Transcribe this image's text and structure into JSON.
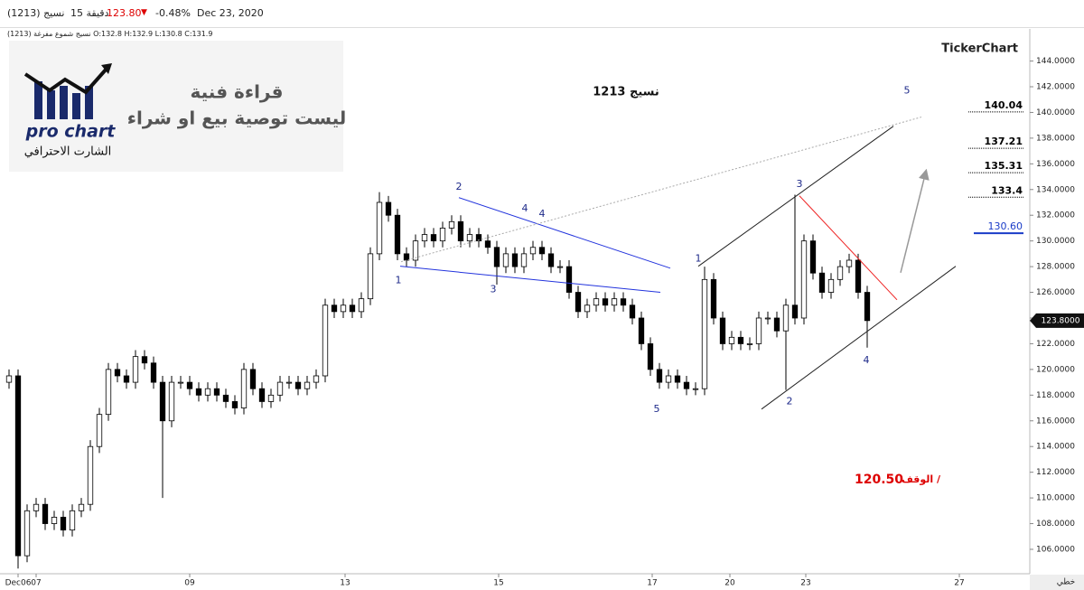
{
  "header": {
    "symbol": "نسيج (1213)",
    "interval": "15 دقيقة",
    "price": "123.80",
    "change": "-0.48%",
    "date": "Dec 23, 2020",
    "ohlc": "نسيج شموع مفرغة (1213) O:132.8 H:132.9 L:130.8 C:131.9"
  },
  "logo": {
    "brand": "pro chart",
    "tagline": "الشارت الاحترافي"
  },
  "notice": {
    "line1": "قراءة فنية",
    "line2": "ليست توصية بيع او شراء"
  },
  "watermark": "TickerChart",
  "footer": {
    "mode": "خطي"
  },
  "chart_data": {
    "type": "candlestick",
    "title": "نسيج 1213",
    "xlim": [
      0,
      114
    ],
    "ylim": [
      104.1,
      146.5
    ],
    "xticks": [
      {
        "value": 2,
        "label": "Dec06"
      },
      {
        "value": 4,
        "label": "07"
      },
      {
        "value": 21,
        "label": "09"
      },
      {
        "value": 38.2,
        "label": "13"
      },
      {
        "value": 55.2,
        "label": "15"
      },
      {
        "value": 72.2,
        "label": "17"
      },
      {
        "value": 80.8,
        "label": "20"
      },
      {
        "value": 89.2,
        "label": "23"
      },
      {
        "value": 106.2,
        "label": "27"
      }
    ],
    "yticks": [
      {
        "value": 106,
        "label": "106.0000"
      },
      {
        "value": 108,
        "label": "108.0000"
      },
      {
        "value": 110,
        "label": "110.0000"
      },
      {
        "value": 112,
        "label": "112.0000"
      },
      {
        "value": 114,
        "label": "114.0000"
      },
      {
        "value": 116,
        "label": "116.0000"
      },
      {
        "value": 118,
        "label": "118.0000"
      },
      {
        "value": 120,
        "label": "120.0000"
      },
      {
        "value": 122,
        "label": "122.0000"
      },
      {
        "value": 124,
        "label": "124.0000"
      },
      {
        "value": 126,
        "label": "126.0000"
      },
      {
        "value": 128,
        "label": "128.0000"
      },
      {
        "value": 130,
        "label": "130.0000"
      },
      {
        "value": 132,
        "label": "132.0000"
      },
      {
        "value": 134,
        "label": "134.0000"
      },
      {
        "value": 136,
        "label": "136.0000"
      },
      {
        "value": 138,
        "label": "138.0000"
      },
      {
        "value": 140,
        "label": "140.0000"
      },
      {
        "value": 142,
        "label": "142.0000"
      },
      {
        "value": 144,
        "label": "144.0000"
      }
    ],
    "up_color": "#ffffff",
    "down_color": "#000000",
    "edge_color": "#000000",
    "x": [
      1,
      2,
      3,
      4,
      5,
      6,
      7,
      8,
      9,
      10,
      11,
      12,
      13,
      14,
      15,
      16,
      17,
      18,
      19,
      20,
      21,
      22,
      23,
      24,
      25,
      26,
      27,
      28,
      29,
      30,
      31,
      32,
      33,
      34,
      35,
      36,
      37,
      38,
      39,
      40,
      41,
      42,
      43,
      44,
      45,
      46,
      47,
      48,
      49,
      50,
      51,
      52,
      53,
      54,
      55,
      56,
      57,
      58,
      59,
      60,
      61,
      62,
      63,
      64,
      65,
      66,
      67,
      68,
      69,
      70,
      71,
      72,
      73,
      74,
      75,
      76,
      77,
      78,
      79,
      80,
      81,
      82,
      83,
      84,
      85,
      86,
      87,
      88,
      89,
      90,
      91,
      92,
      93,
      94,
      95,
      96
    ],
    "open": [
      119,
      119.5,
      105.5,
      109,
      109.5,
      108,
      108.5,
      107.5,
      109,
      109.5,
      114,
      116.5,
      120,
      119.5,
      119,
      121,
      120.5,
      119,
      116,
      119,
      119,
      118.5,
      118,
      118.5,
      118,
      117.5,
      117,
      120,
      118.5,
      117.5,
      118,
      119,
      119,
      118.5,
      119,
      119.5,
      125,
      124.5,
      125,
      124.5,
      125.5,
      129,
      133,
      132,
      129,
      128.5,
      130,
      130.5,
      130,
      131,
      131.5,
      130,
      130.5,
      130,
      129.5,
      128,
      129,
      128,
      129,
      129.5,
      129,
      128,
      128,
      126,
      124.5,
      125,
      125.5,
      125,
      125.5,
      125,
      124,
      122,
      120,
      119,
      119.5,
      119,
      118.5,
      118.5,
      127,
      124,
      122,
      122.5,
      122,
      122,
      124,
      124,
      123,
      125,
      124,
      130,
      127.5,
      126,
      127,
      128,
      128.5,
      126
    ],
    "high": [
      120,
      120,
      109.5,
      110,
      110,
      109,
      109,
      109.5,
      110,
      114.5,
      117,
      120.5,
      120.5,
      120,
      121.5,
      121.5,
      121,
      119.5,
      119.5,
      119.5,
      119.5,
      119,
      119,
      119,
      118.5,
      118,
      120.5,
      120.5,
      119,
      118.5,
      119.5,
      119.5,
      119.5,
      119.5,
      120,
      125.5,
      125.5,
      125.5,
      125.5,
      126,
      129.5,
      133.8,
      133.5,
      132.5,
      129.5,
      130.5,
      131,
      131,
      131.5,
      132,
      132,
      131,
      131,
      130.5,
      130,
      129.5,
      129.5,
      129.5,
      130,
      130,
      129.5,
      128.5,
      128.5,
      126.5,
      125.5,
      126,
      126,
      126,
      126,
      125.5,
      124.5,
      122.5,
      120.5,
      120,
      120,
      119.5,
      119,
      128,
      127.5,
      124.5,
      123,
      123,
      122.5,
      124.5,
      124.5,
      124.5,
      125.5,
      133.6,
      130.5,
      130.5,
      128,
      127.5,
      128.5,
      129,
      129,
      126.5
    ],
    "low": [
      118.5,
      104.5,
      105,
      108.5,
      107.5,
      107.5,
      107,
      107,
      108.5,
      109,
      113.5,
      116,
      119,
      118.5,
      118.5,
      120,
      118.5,
      110,
      115.5,
      118.5,
      118,
      117.5,
      117.5,
      117.5,
      117,
      116.5,
      116.5,
      118,
      117,
      117,
      117.5,
      118.5,
      118,
      118,
      118.5,
      119,
      124,
      124,
      124,
      124,
      125,
      128.5,
      131.5,
      128.5,
      128,
      128,
      129.5,
      129.5,
      129.5,
      130.5,
      129.5,
      129.5,
      129.5,
      129,
      126.6,
      127.5,
      127.5,
      127.5,
      128.5,
      128.5,
      127.5,
      127.5,
      125.5,
      124,
      124,
      124.5,
      124.5,
      124.5,
      124.5,
      123.5,
      121.5,
      119.5,
      118.5,
      118.5,
      118.5,
      118,
      118,
      118,
      123.5,
      121.5,
      121.5,
      121.5,
      121.5,
      121.5,
      123.5,
      122.5,
      118.4,
      123.5,
      123.5,
      127,
      125.5,
      125.5,
      126.5,
      127.5,
      125.5,
      121.7
    ],
    "close": [
      119.5,
      105.5,
      109,
      109.5,
      108,
      108.5,
      107.5,
      109,
      109.5,
      114,
      116.5,
      120,
      119.5,
      119,
      121,
      120.5,
      119,
      116,
      119,
      119,
      118.5,
      118,
      118.5,
      118,
      117.5,
      117,
      120,
      118.5,
      117.5,
      118,
      119,
      119,
      118.5,
      119,
      119.5,
      125,
      124.5,
      125,
      124.5,
      125.5,
      129,
      133,
      132,
      129,
      128.5,
      130,
      130.5,
      130,
      131,
      131.5,
      130,
      130.5,
      130,
      129.5,
      128,
      129,
      128,
      129,
      129.5,
      129,
      128,
      128,
      126,
      124.5,
      125,
      125.5,
      125,
      125.5,
      125,
      124,
      122,
      120,
      119,
      119.5,
      119,
      118.5,
      118.5,
      127,
      124,
      122,
      122.5,
      122,
      122,
      124,
      124,
      123,
      125,
      124,
      130,
      127.5,
      126,
      127,
      128,
      128.5,
      126,
      123.8
    ],
    "last_price": {
      "value": 123.8,
      "label": "123.8000"
    },
    "levels": [
      140.04,
      137.21,
      135.31,
      133.4,
      {
        "value": 130.6,
        "label": "130.60"
      }
    ],
    "level_colors": [
      "#000000",
      "#000000",
      "#000000",
      "#000000",
      "#1a3cc8"
    ],
    "stop": {
      "text": "الوقف /",
      "value": "120.50"
    },
    "wave_labels": [
      {
        "label": "1",
        "x": 44.1,
        "y": 126.9
      },
      {
        "label": "2",
        "x": 50.8,
        "y": 134.2
      },
      {
        "label": "3",
        "x": 54.6,
        "y": 126.2
      },
      {
        "label": "4",
        "x": 58.1,
        "y": 132.5
      },
      {
        "label": "4",
        "x": 60.0,
        "y": 132.1
      },
      {
        "label": "5",
        "x": 72.7,
        "y": 116.9
      },
      {
        "label": "1",
        "x": 77.3,
        "y": 128.6
      },
      {
        "label": "2",
        "x": 87.4,
        "y": 117.5
      },
      {
        "label": "3",
        "x": 88.5,
        "y": 134.4
      },
      {
        "label": "4",
        "x": 95.9,
        "y": 120.7
      },
      {
        "label": "5",
        "x": 100.4,
        "y": 141.7
      }
    ],
    "wave_color": "#1e2a8a",
    "trend_lines": [
      {
        "color": "#2233dd",
        "x": [
          50.8,
          74.2
        ],
        "y": [
          133.37,
          127.88
        ]
      },
      {
        "color": "#2233dd",
        "x": [
          44.3,
          73.1
        ],
        "y": [
          128.03,
          126.0
        ]
      },
      {
        "color": "#222222",
        "x": [
          77.3,
          98.9
        ],
        "y": [
          128.03,
          138.93
        ]
      },
      {
        "color": "#222222",
        "x": [
          84.3,
          105.8
        ],
        "y": [
          116.91,
          128.03
        ]
      },
      {
        "color": "#ee2222",
        "x": [
          88.5,
          99.3
        ],
        "y": [
          133.51,
          125.42
        ]
      },
      {
        "color": "#aaaaaa",
        "x": [
          44.4,
          102.0
        ],
        "y": [
          128.38,
          139.64
        ],
        "dashed": true
      },
      {
        "color": "#999999",
        "x": [
          99.7,
          102.5
        ],
        "y": [
          127.53,
          135.41
        ],
        "arrow": true
      }
    ]
  }
}
